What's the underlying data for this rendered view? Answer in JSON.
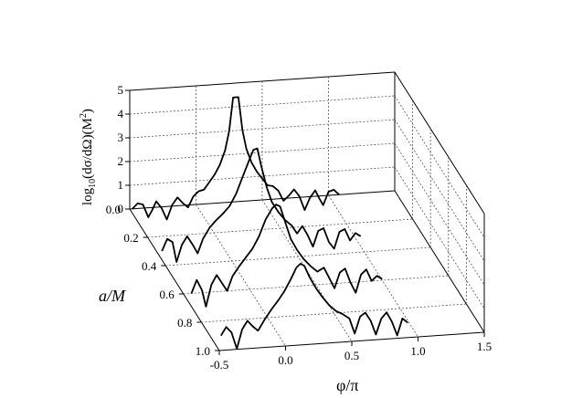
{
  "chart_data": {
    "type": "line",
    "z_axis": {
      "label_main": "log",
      "label_sub": "10",
      "label_rest": "(dσ/dΩ)(M",
      "label_sup": "2",
      "label_close": ")",
      "ticks": [
        "0",
        "1",
        "2",
        "3",
        "4",
        "5"
      ],
      "range": [
        -0.6,
        5
      ]
    },
    "a_axis": {
      "label": "a/M",
      "ticks": [
        "0.0",
        "0.2",
        "0.4",
        "0.6",
        "0.8",
        "1.0"
      ],
      "range": [
        0,
        1
      ]
    },
    "x_axis": {
      "label": "φ/π",
      "ticks": [
        "-0.5",
        "0.0",
        "0.5",
        "1.0",
        "1.5"
      ],
      "range": [
        -0.5,
        1.5
      ]
    },
    "grid": true,
    "series": [
      {
        "a": 0.0,
        "points": [
          [
            -0.48,
            0.0
          ],
          [
            -0.44,
            0.22
          ],
          [
            -0.4,
            0.15
          ],
          [
            -0.36,
            -0.4
          ],
          [
            -0.33,
            -0.1
          ],
          [
            -0.3,
            0.25
          ],
          [
            -0.26,
            -0.05
          ],
          [
            -0.22,
            -0.55
          ],
          [
            -0.18,
            0.05
          ],
          [
            -0.14,
            0.35
          ],
          [
            -0.1,
            0.1
          ],
          [
            -0.06,
            -0.1
          ],
          [
            -0.02,
            0.35
          ],
          [
            0.02,
            0.55
          ],
          [
            0.06,
            0.6
          ],
          [
            0.1,
            0.9
          ],
          [
            0.14,
            1.2
          ],
          [
            0.18,
            1.6
          ],
          [
            0.22,
            2.2
          ],
          [
            0.25,
            3.0
          ],
          [
            0.28,
            4.4
          ],
          [
            0.32,
            4.4
          ],
          [
            0.35,
            3.0
          ],
          [
            0.38,
            2.2
          ],
          [
            0.42,
            1.6
          ],
          [
            0.46,
            1.2
          ],
          [
            0.5,
            0.9
          ],
          [
            0.54,
            0.6
          ],
          [
            0.58,
            0.55
          ],
          [
            0.62,
            0.35
          ],
          [
            0.66,
            -0.1
          ],
          [
            0.7,
            0.1
          ],
          [
            0.74,
            0.35
          ],
          [
            0.78,
            0.05
          ],
          [
            0.82,
            -0.55
          ],
          [
            0.86,
            -0.05
          ],
          [
            0.9,
            0.25
          ],
          [
            0.93,
            -0.1
          ],
          [
            0.96,
            -0.4
          ],
          [
            1.0,
            0.15
          ],
          [
            1.04,
            0.22
          ],
          [
            1.08,
            0.0
          ]
        ]
      },
      {
        "a": 0.3,
        "points": [
          [
            -0.46,
            0.0
          ],
          [
            -0.42,
            0.5
          ],
          [
            -0.38,
            0.35
          ],
          [
            -0.35,
            -0.5
          ],
          [
            -0.31,
            0.2
          ],
          [
            -0.27,
            0.55
          ],
          [
            -0.23,
            0.2
          ],
          [
            -0.19,
            -0.2
          ],
          [
            -0.15,
            0.4
          ],
          [
            -0.1,
            0.85
          ],
          [
            -0.05,
            1.15
          ],
          [
            0.0,
            1.4
          ],
          [
            0.05,
            1.7
          ],
          [
            0.1,
            2.2
          ],
          [
            0.15,
            2.9
          ],
          [
            0.2,
            3.6
          ],
          [
            0.23,
            4.0
          ],
          [
            0.26,
            4.05
          ],
          [
            0.29,
            3.3
          ],
          [
            0.33,
            2.4
          ],
          [
            0.37,
            1.75
          ],
          [
            0.42,
            1.3
          ],
          [
            0.47,
            0.95
          ],
          [
            0.52,
            0.7
          ],
          [
            0.56,
            0.35
          ],
          [
            0.6,
            0.65
          ],
          [
            0.64,
            0.25
          ],
          [
            0.68,
            -0.25
          ],
          [
            0.72,
            0.4
          ],
          [
            0.76,
            0.5
          ],
          [
            0.8,
            -0.1
          ],
          [
            0.84,
            -0.4
          ],
          [
            0.88,
            0.3
          ],
          [
            0.92,
            0.4
          ],
          [
            0.96,
            -0.1
          ],
          [
            1.0,
            0.2
          ],
          [
            1.04,
            0.05
          ]
        ]
      },
      {
        "a": 0.6,
        "points": [
          [
            -0.44,
            0.0
          ],
          [
            -0.4,
            0.55
          ],
          [
            -0.36,
            0.1
          ],
          [
            -0.33,
            -0.6
          ],
          [
            -0.29,
            0.3
          ],
          [
            -0.25,
            0.7
          ],
          [
            -0.21,
            0.35
          ],
          [
            -0.17,
            0.0
          ],
          [
            -0.13,
            0.6
          ],
          [
            -0.08,
            1.0
          ],
          [
            -0.03,
            1.35
          ],
          [
            0.02,
            1.7
          ],
          [
            0.07,
            2.2
          ],
          [
            0.12,
            2.9
          ],
          [
            0.17,
            3.35
          ],
          [
            0.2,
            3.5
          ],
          [
            0.23,
            3.4
          ],
          [
            0.27,
            2.7
          ],
          [
            0.31,
            2.0
          ],
          [
            0.36,
            1.5
          ],
          [
            0.41,
            1.1
          ],
          [
            0.46,
            0.8
          ],
          [
            0.51,
            0.55
          ],
          [
            0.56,
            0.7
          ],
          [
            0.6,
            0.25
          ],
          [
            0.64,
            -0.2
          ],
          [
            0.68,
            0.45
          ],
          [
            0.72,
            0.6
          ],
          [
            0.76,
            0.0
          ],
          [
            0.8,
            -0.45
          ],
          [
            0.84,
            0.3
          ],
          [
            0.88,
            0.5
          ],
          [
            0.92,
            0.0
          ],
          [
            0.96,
            0.2
          ],
          [
            1.0,
            0.05
          ]
        ]
      },
      {
        "a": 0.9,
        "points": [
          [
            -0.42,
            0.0
          ],
          [
            -0.38,
            0.35
          ],
          [
            -0.34,
            0.1
          ],
          [
            -0.3,
            -0.6
          ],
          [
            -0.26,
            0.2
          ],
          [
            -0.22,
            0.55
          ],
          [
            -0.18,
            0.3
          ],
          [
            -0.14,
            0.1
          ],
          [
            -0.09,
            0.55
          ],
          [
            -0.04,
            0.95
          ],
          [
            0.01,
            1.3
          ],
          [
            0.06,
            1.7
          ],
          [
            0.11,
            2.2
          ],
          [
            0.15,
            2.65
          ],
          [
            0.18,
            2.8
          ],
          [
            0.21,
            2.7
          ],
          [
            0.25,
            2.2
          ],
          [
            0.3,
            1.7
          ],
          [
            0.35,
            1.3
          ],
          [
            0.4,
            0.95
          ],
          [
            0.45,
            0.7
          ],
          [
            0.5,
            0.55
          ],
          [
            0.55,
            0.35
          ],
          [
            0.59,
            -0.3
          ],
          [
            0.63,
            0.4
          ],
          [
            0.67,
            0.55
          ],
          [
            0.71,
            0.2
          ],
          [
            0.75,
            -0.4
          ],
          [
            0.79,
            0.25
          ],
          [
            0.83,
            0.5
          ],
          [
            0.87,
            0.1
          ],
          [
            0.91,
            -0.5
          ],
          [
            0.95,
            0.2
          ],
          [
            0.99,
            0.0
          ]
        ]
      }
    ]
  }
}
